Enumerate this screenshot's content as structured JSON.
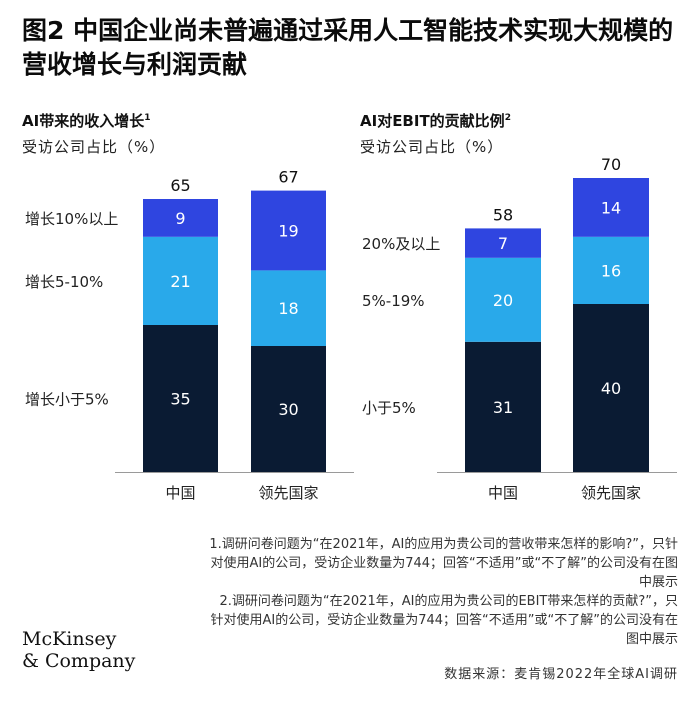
{
  "title": "图2 中国企业尚未普遍通过采用人工智能技术实现大规模的营收增长与利润贡献",
  "chart_data": [
    {
      "type": "bar",
      "stacked": true,
      "title": "AI带来的收入增长",
      "title_sup": "1",
      "subtitle": "受访公司占比（%）",
      "categories": [
        "中国",
        "领先国家"
      ],
      "series": [
        {
          "name": "增长小于5%",
          "values": [
            35,
            30
          ],
          "color": "#0a1b33"
        },
        {
          "name": "增长5-10%",
          "values": [
            21,
            18
          ],
          "color": "#29a9ea"
        },
        {
          "name": "增长10%以上",
          "values": [
            9,
            19
          ],
          "color": "#2f45e0"
        }
      ],
      "totals": [
        65,
        67
      ]
    },
    {
      "type": "bar",
      "stacked": true,
      "title": "AI对EBIT的贡献比例",
      "title_sup": "2",
      "subtitle": "受访公司占比（%）",
      "categories": [
        "中国",
        "领先国家"
      ],
      "series": [
        {
          "name": "小于5%",
          "values": [
            31,
            40
          ],
          "color": "#0a1b33"
        },
        {
          "name": "5%-19%",
          "values": [
            20,
            16
          ],
          "color": "#29a9ea"
        },
        {
          "name": "20%及以上",
          "values": [
            7,
            14
          ],
          "color": "#2f45e0"
        }
      ],
      "totals": [
        58,
        70
      ]
    }
  ],
  "footnotes": [
    "1.调研问卷问题为“在2021年，AI的应用为贵公司的营收带来怎样的影响?”，只针对使用AI的公司，受访企业数量为744；回答“不适用”或“不了解”的公司没有在图中展示",
    "2.调研问卷问题为“在2021年，AI的应用为贵公司的EBIT带来怎样的贡献?”，只针对使用AI的公司，受访企业数量为744；回答“不适用”或“不了解”的公司没有在图中展示"
  ],
  "source": "数据来源：麦肯锡2022年全球AI调研",
  "logo": {
    "line1": "McKinsey",
    "line2": "& Company"
  }
}
